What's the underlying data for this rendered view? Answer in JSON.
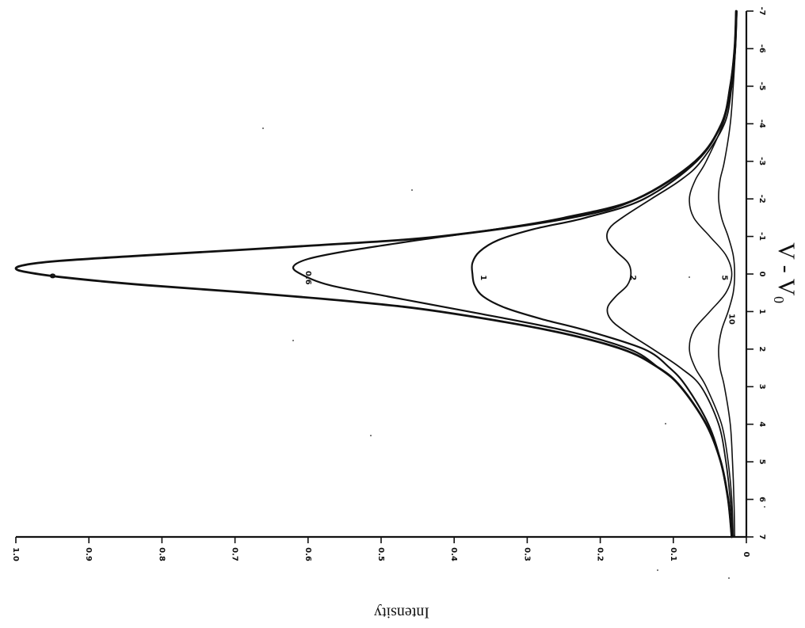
{
  "chart_data": {
    "type": "line",
    "orientation": "rotated 90 degrees",
    "xlabel": "V - V₀",
    "ylabel": "Intensity",
    "xlim": [
      -7,
      7
    ],
    "ylim": [
      0,
      1.0
    ],
    "x_ticks": [
      -7,
      -6,
      -5,
      -4,
      -3,
      -2,
      -1,
      0,
      1,
      2,
      3,
      4,
      5,
      6,
      7
    ],
    "x_tick_labels": [
      "-7",
      "-6",
      "-5",
      "-4",
      "-3",
      "-2",
      "-1",
      "0",
      "1",
      "2",
      "3",
      "4",
      "5",
      "6",
      "7"
    ],
    "y_ticks": [
      0,
      0.1,
      0.2,
      0.3,
      0.4,
      0.5,
      0.6,
      0.7,
      0.8,
      0.9,
      1.0
    ],
    "y_tick_labels": [
      "0",
      "0.1",
      "0.2",
      "0.3",
      "0.4",
      "0.5",
      "0.6",
      "0.7",
      "0.8",
      "0.9",
      "1.0"
    ],
    "grid": false,
    "legend": "none",
    "series": [
      {
        "name": "0",
        "label_at": [
          0.05,
          0.95
        ],
        "stroke_width": 2.8,
        "points": [
          [
            -7,
            0.014
          ],
          [
            -6,
            0.016
          ],
          [
            -5,
            0.022
          ],
          [
            -4,
            0.034
          ],
          [
            -3,
            0.07
          ],
          [
            -2,
            0.15
          ],
          [
            -1.5,
            0.24
          ],
          [
            -1,
            0.42
          ],
          [
            -0.75,
            0.6
          ],
          [
            -0.5,
            0.82
          ],
          [
            -0.35,
            0.94
          ],
          [
            -0.25,
            0.985
          ],
          [
            -0.15,
            1.0
          ],
          [
            -0.05,
            0.985
          ],
          [
            0.1,
            0.93
          ],
          [
            0.3,
            0.82
          ],
          [
            0.5,
            0.68
          ],
          [
            0.75,
            0.53
          ],
          [
            1,
            0.42
          ],
          [
            1.5,
            0.27
          ],
          [
            2,
            0.17
          ],
          [
            2.5,
            0.12
          ],
          [
            3,
            0.09
          ],
          [
            4,
            0.055
          ],
          [
            5,
            0.035
          ],
          [
            6,
            0.025
          ],
          [
            7,
            0.02
          ]
        ]
      },
      {
        "name": "0.6",
        "label_at": [
          0.1,
          0.6
        ],
        "stroke_width": 2.2,
        "points": [
          [
            -7,
            0.014
          ],
          [
            -6,
            0.016
          ],
          [
            -5,
            0.022
          ],
          [
            -4,
            0.034
          ],
          [
            -3,
            0.07
          ],
          [
            -2,
            0.15
          ],
          [
            -1.5,
            0.25
          ],
          [
            -1.2,
            0.34
          ],
          [
            -0.9,
            0.45
          ],
          [
            -0.6,
            0.55
          ],
          [
            -0.4,
            0.6
          ],
          [
            -0.2,
            0.62
          ],
          [
            0,
            0.61
          ],
          [
            0.3,
            0.57
          ],
          [
            0.6,
            0.49
          ],
          [
            1,
            0.38
          ],
          [
            1.5,
            0.25
          ],
          [
            2,
            0.16
          ],
          [
            2.5,
            0.12
          ],
          [
            3,
            0.09
          ],
          [
            4,
            0.055
          ],
          [
            5,
            0.035
          ],
          [
            6,
            0.025
          ],
          [
            7,
            0.02
          ]
        ]
      },
      {
        "name": "1",
        "label_at": [
          0.1,
          0.36
        ],
        "stroke_width": 2.2,
        "points": [
          [
            -7,
            0.014
          ],
          [
            -6,
            0.016
          ],
          [
            -5,
            0.022
          ],
          [
            -4,
            0.034
          ],
          [
            -3,
            0.068
          ],
          [
            -2,
            0.14
          ],
          [
            -1.5,
            0.22
          ],
          [
            -1.2,
            0.29
          ],
          [
            -0.9,
            0.34
          ],
          [
            -0.6,
            0.365
          ],
          [
            -0.3,
            0.375
          ],
          [
            0,
            0.375
          ],
          [
            0.3,
            0.372
          ],
          [
            0.6,
            0.36
          ],
          [
            0.9,
            0.33
          ],
          [
            1.2,
            0.28
          ],
          [
            1.5,
            0.22
          ],
          [
            2,
            0.14
          ],
          [
            2.5,
            0.105
          ],
          [
            3,
            0.082
          ],
          [
            4,
            0.052
          ],
          [
            5,
            0.035
          ],
          [
            6,
            0.025
          ],
          [
            7,
            0.02
          ]
        ]
      },
      {
        "name": "2",
        "label_at": [
          0.1,
          0.155
        ],
        "stroke_width": 1.8,
        "points": [
          [
            -7,
            0.013
          ],
          [
            -6,
            0.015
          ],
          [
            -5,
            0.02
          ],
          [
            -4,
            0.03
          ],
          [
            -3,
            0.062
          ],
          [
            -2.5,
            0.09
          ],
          [
            -2,
            0.13
          ],
          [
            -1.5,
            0.17
          ],
          [
            -1.2,
            0.188
          ],
          [
            -0.9,
            0.19
          ],
          [
            -0.6,
            0.178
          ],
          [
            -0.3,
            0.162
          ],
          [
            0,
            0.158
          ],
          [
            0.3,
            0.163
          ],
          [
            0.6,
            0.179
          ],
          [
            0.9,
            0.19
          ],
          [
            1.2,
            0.186
          ],
          [
            1.5,
            0.168
          ],
          [
            2,
            0.128
          ],
          [
            2.5,
            0.09
          ],
          [
            3,
            0.062
          ],
          [
            4,
            0.038
          ],
          [
            5,
            0.028
          ],
          [
            6,
            0.022
          ],
          [
            7,
            0.018
          ]
        ]
      },
      {
        "name": "5",
        "label_at": [
          0.1,
          0.03
        ],
        "stroke_width": 1.6,
        "points": [
          [
            -7,
            0.013
          ],
          [
            -6,
            0.015
          ],
          [
            -5,
            0.02
          ],
          [
            -4,
            0.032
          ],
          [
            -3,
            0.055
          ],
          [
            -2.5,
            0.07
          ],
          [
            -2,
            0.078
          ],
          [
            -1.5,
            0.072
          ],
          [
            -1,
            0.05
          ],
          [
            -0.5,
            0.028
          ],
          [
            0,
            0.02
          ],
          [
            0.5,
            0.028
          ],
          [
            1,
            0.05
          ],
          [
            1.5,
            0.072
          ],
          [
            2,
            0.078
          ],
          [
            2.5,
            0.07
          ],
          [
            3,
            0.055
          ],
          [
            4,
            0.034
          ],
          [
            5,
            0.025
          ],
          [
            6,
            0.02
          ],
          [
            7,
            0.018
          ]
        ]
      },
      {
        "name": "10",
        "label_at": [
          1.2,
          0.02
        ],
        "stroke_width": 1.6,
        "points": [
          [
            -7,
            0.013
          ],
          [
            -6,
            0.015
          ],
          [
            -5,
            0.018
          ],
          [
            -4,
            0.022
          ],
          [
            -3,
            0.03
          ],
          [
            -2.5,
            0.036
          ],
          [
            -2,
            0.038
          ],
          [
            -1.5,
            0.034
          ],
          [
            -1,
            0.025
          ],
          [
            -0.5,
            0.018
          ],
          [
            0,
            0.016
          ],
          [
            0.5,
            0.018
          ],
          [
            1,
            0.025
          ],
          [
            1.5,
            0.034
          ],
          [
            2,
            0.038
          ],
          [
            2.5,
            0.036
          ],
          [
            3,
            0.03
          ],
          [
            4,
            0.022
          ],
          [
            5,
            0.019
          ],
          [
            6,
            0.017
          ],
          [
            7,
            0.016
          ]
        ]
      }
    ]
  }
}
